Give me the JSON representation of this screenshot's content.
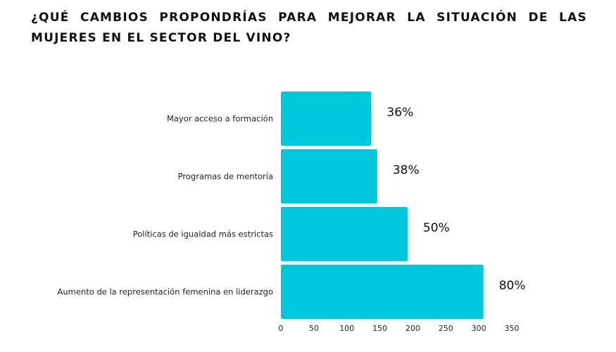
{
  "chart_data": {
    "type": "bar",
    "orientation": "horizontal",
    "title": "¿QUÉ CAMBIOS PROPONDRÍAS PARA MEJORAR LA SITUACIÓN DE LAS MUJERES EN EL SECTOR DEL VINO?",
    "categories": [
      "Mayor acceso a formación",
      "Programas de mentoría",
      "Políticas de igualdad más estrictas",
      "Aumento de la representación femenina en liderazgo"
    ],
    "values": [
      137,
      146,
      192,
      307
    ],
    "data_labels": [
      "36%",
      "38%",
      "50%",
      "80%"
    ],
    "xlim": [
      0,
      350
    ],
    "xticks": [
      "0",
      "50",
      "100",
      "150",
      "200",
      "250",
      "300",
      "350"
    ],
    "xlabel": "",
    "ylabel": "",
    "grid": false,
    "legend": "none",
    "bar_color": "#00C8DC"
  }
}
